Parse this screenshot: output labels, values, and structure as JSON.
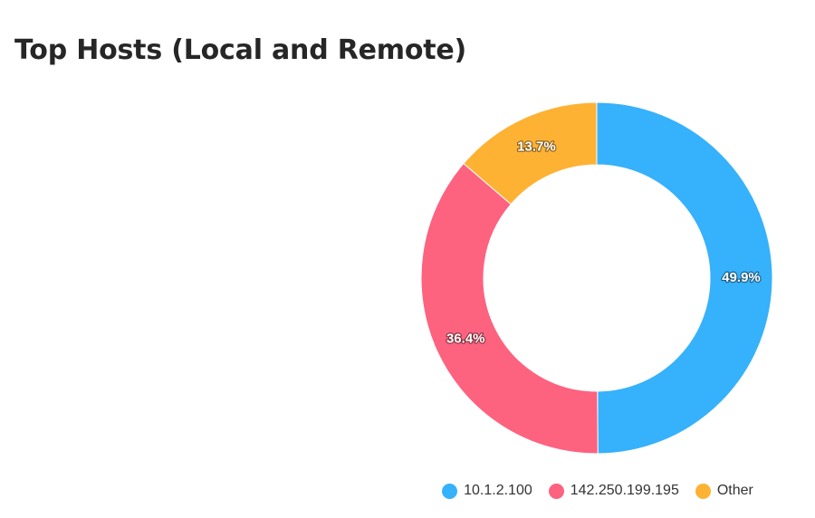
{
  "card": {
    "title": "Top Hosts (Local and Remote)"
  },
  "chart_data": {
    "type": "pie",
    "variant": "donut",
    "title": "Top Hosts (Local and Remote)",
    "labels": [
      "10.1.2.100",
      "142.250.199.195",
      "Other"
    ],
    "values": [
      49.9,
      36.4,
      13.7
    ],
    "unit": "%",
    "data_labels": [
      "49.9%",
      "36.4%",
      "13.7%"
    ],
    "colors": [
      "#36b1fb",
      "#fd627f",
      "#feb233"
    ],
    "legend_position": "bottom"
  }
}
